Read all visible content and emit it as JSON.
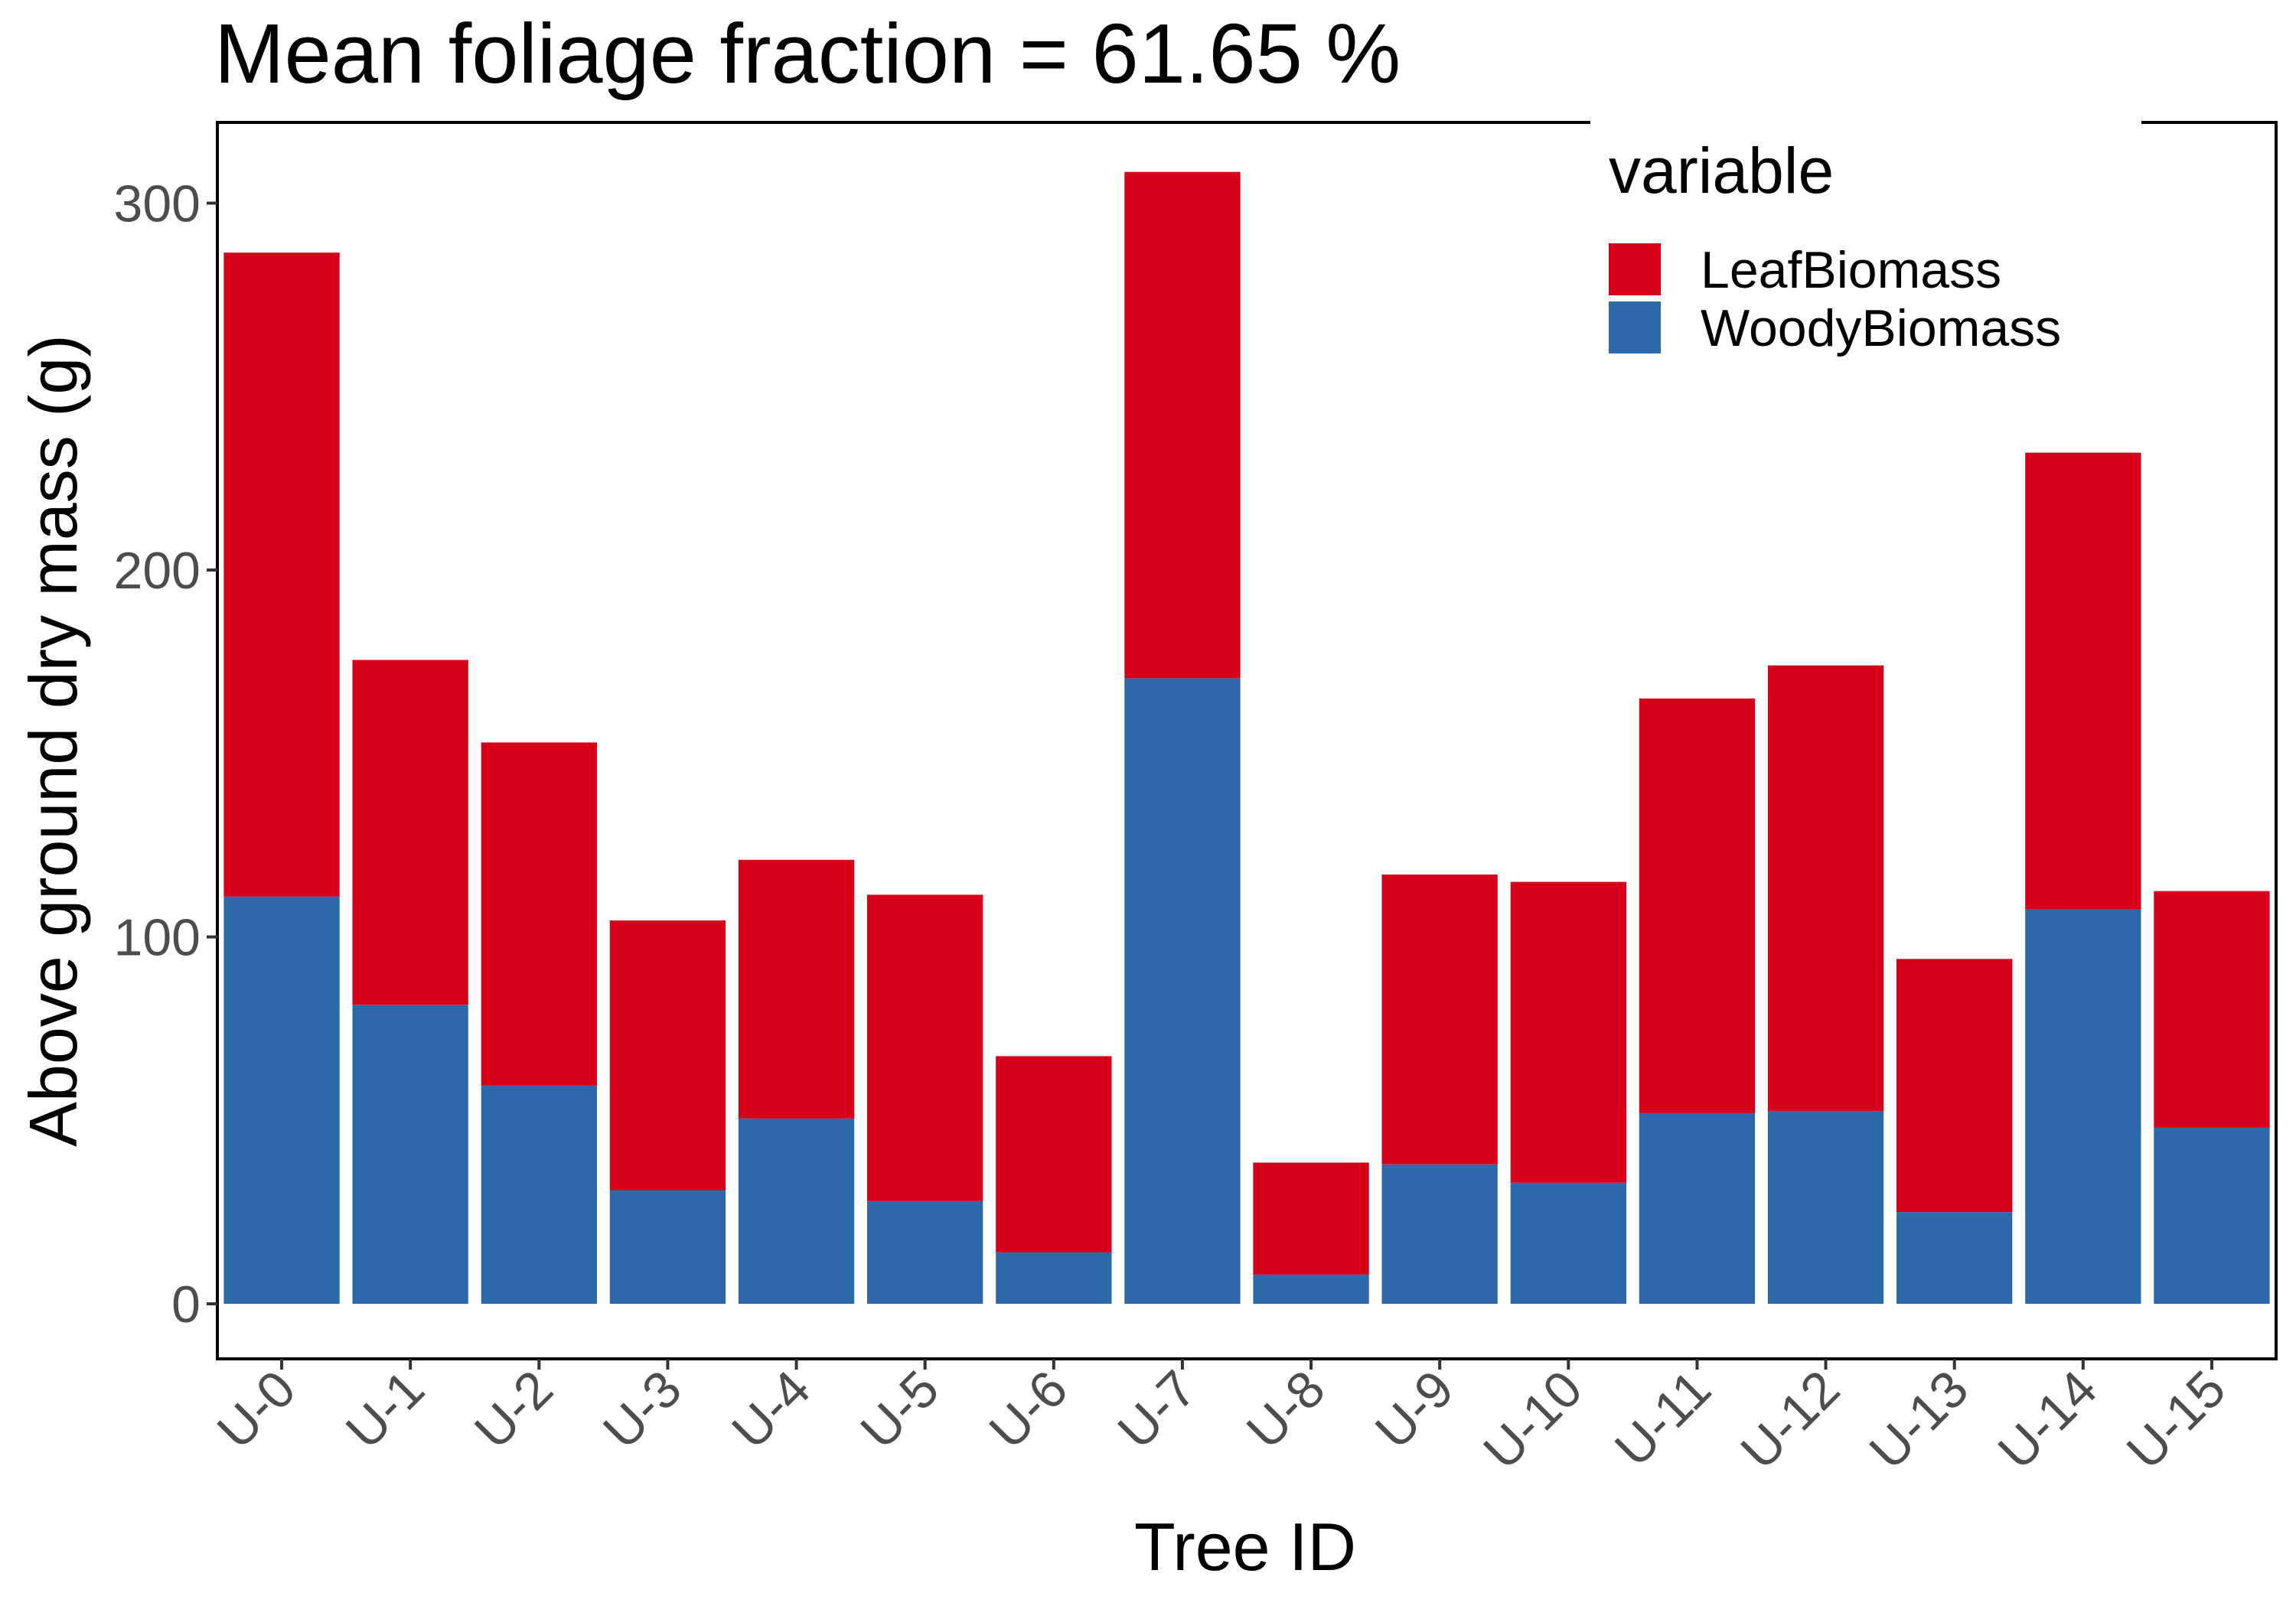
{
  "chart_data": {
    "type": "bar",
    "stacked": true,
    "title": "Mean foliage fraction = 61.65 %",
    "xlabel": "Tree ID",
    "ylabel": "Above ground dry mass (g)",
    "ylim": [
      -15,
      322
    ],
    "yticks": [
      0,
      100,
      200,
      300
    ],
    "grid": false,
    "legend": {
      "title": "variable",
      "position": "top-right",
      "entries": [
        {
          "name": "LeafBiomass",
          "color": "#D7001A"
        },
        {
          "name": "WoodyBiomass",
          "color": "#2D69A8"
        }
      ]
    },
    "categories": [
      "U-0",
      "U-1",
      "U-2",
      "U-3",
      "U-4",
      "U-5",
      "U-6",
      "U-7",
      "U-8",
      "U-9",
      "U-10",
      "U-11",
      "U-12",
      "U-13",
      "U-14",
      "U-15"
    ],
    "series": [
      {
        "name": "WoodyBiomass",
        "color": "#2D69A8",
        "values": [
          111,
          81.5,
          59.5,
          31,
          50.5,
          28,
          14,
          170.5,
          8,
          38,
          33,
          52,
          52.5,
          25,
          107.5,
          48
        ]
      },
      {
        "name": "LeafBiomass",
        "color": "#D7001A",
        "values": [
          175.5,
          94,
          93.5,
          73.5,
          70.5,
          83.5,
          53.5,
          138,
          30.5,
          79,
          82,
          113,
          121.5,
          69,
          124.5,
          64.5
        ]
      }
    ]
  }
}
